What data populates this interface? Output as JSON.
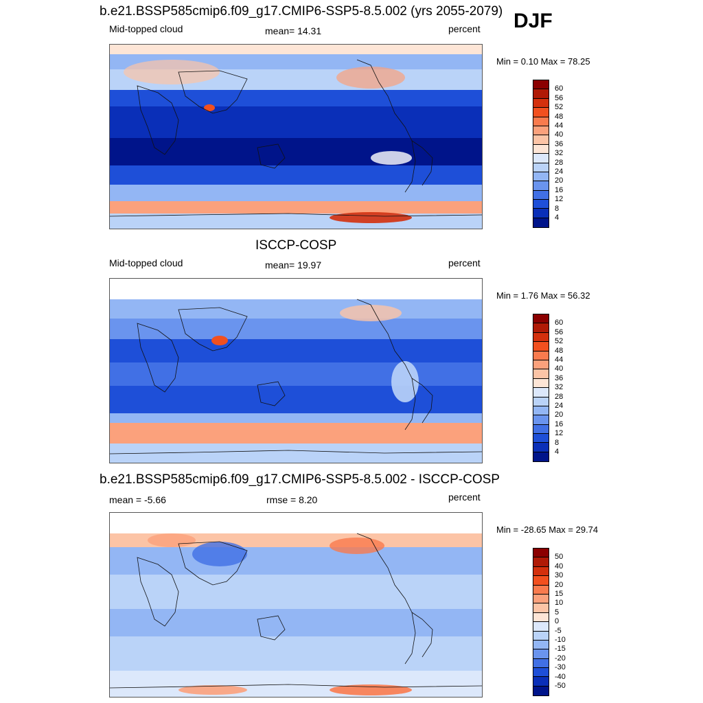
{
  "season": "DJF",
  "panels": [
    {
      "title": "b.e21.BSSP585cmip6.f09_g17.CMIP6-SSP5-8.5.002 (yrs 2055-2079)",
      "left_label": "Mid-topped cloud",
      "center_label": "mean=  14.31",
      "right_label": "percent",
      "minmax": "Min =   0.10 Max =  78.25",
      "colorbar_ticks": [
        "60",
        "56",
        "52",
        "48",
        "44",
        "40",
        "36",
        "32",
        "28",
        "24",
        "20",
        "16",
        "12",
        "8",
        "4"
      ],
      "colorbar_colors": [
        "#8b0000",
        "#b01a06",
        "#d4300d",
        "#f2501f",
        "#f97b4e",
        "#fba17c",
        "#fcc4a6",
        "#fde5d6",
        "#dce8fb",
        "#bad3f8",
        "#93b6f4",
        "#6a94ee",
        "#4170e5",
        "#1e4fd8",
        "#0a2fb8",
        "#00148a"
      ]
    },
    {
      "title": "ISCCP-COSP",
      "left_label": "Mid-topped cloud",
      "center_label": "mean=  19.97",
      "right_label": "percent",
      "minmax": "Min =   1.76 Max =  56.32",
      "colorbar_ticks": [
        "60",
        "56",
        "52",
        "48",
        "44",
        "40",
        "36",
        "32",
        "28",
        "24",
        "20",
        "16",
        "12",
        "8",
        "4"
      ],
      "colorbar_colors": [
        "#8b0000",
        "#b01a06",
        "#d4300d",
        "#f2501f",
        "#f97b4e",
        "#fba17c",
        "#fcc4a6",
        "#fde5d6",
        "#dce8fb",
        "#bad3f8",
        "#93b6f4",
        "#6a94ee",
        "#4170e5",
        "#1e4fd8",
        "#0a2fb8",
        "#00148a"
      ]
    },
    {
      "title": "b.e21.BSSP585cmip6.f09_g17.CMIP6-SSP5-8.5.002 - ISCCP-COSP",
      "left_label": "mean =  -5.66",
      "center_label": "rmse =   8.20",
      "right_label": "percent",
      "minmax": "Min = -28.65 Max =  29.74",
      "colorbar_ticks": [
        "50",
        "40",
        "30",
        "20",
        "15",
        "10",
        "5",
        "0",
        "-5",
        "-10",
        "-15",
        "-20",
        "-30",
        "-40",
        "-50"
      ],
      "colorbar_colors": [
        "#8b0000",
        "#b01a06",
        "#d4300d",
        "#f2501f",
        "#f97b4e",
        "#fba17c",
        "#fcc4a6",
        "#fde5d6",
        "#dce8fb",
        "#bad3f8",
        "#93b6f4",
        "#6a94ee",
        "#4170e5",
        "#1e4fd8",
        "#0a2fb8",
        "#00148a"
      ]
    }
  ]
}
